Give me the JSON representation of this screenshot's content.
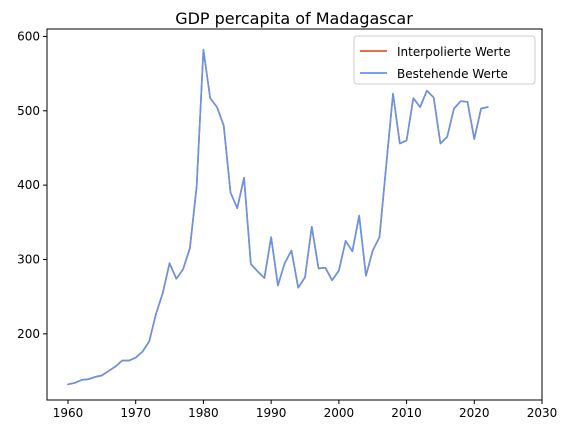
{
  "chart_data": {
    "type": "line",
    "title": "GDP percapita of Madagascar",
    "xlabel": "",
    "ylabel": "",
    "xlim": [
      1956.9,
      2030
    ],
    "ylim": [
      111,
      610
    ],
    "xticks": [
      1960,
      1970,
      1980,
      1990,
      2000,
      2010,
      2020,
      2030
    ],
    "yticks": [
      200,
      300,
      400,
      500,
      600
    ],
    "xtick_labels": [
      "1960",
      "1970",
      "1980",
      "1990",
      "2000",
      "2010",
      "2020",
      "2030"
    ],
    "ytick_labels": [
      "200",
      "300",
      "400",
      "500",
      "600"
    ],
    "grid": false,
    "legend_position": "top-right",
    "x": [
      1960,
      1961,
      1962,
      1963,
      1964,
      1965,
      1966,
      1967,
      1968,
      1969,
      1970,
      1971,
      1972,
      1973,
      1974,
      1975,
      1976,
      1977,
      1978,
      1979,
      1980,
      1981,
      1982,
      1983,
      1984,
      1985,
      1986,
      1987,
      1988,
      1989,
      1990,
      1991,
      1992,
      1993,
      1994,
      1995,
      1996,
      1997,
      1998,
      1999,
      2000,
      2001,
      2002,
      2003,
      2004,
      2005,
      2006,
      2007,
      2008,
      2009,
      2010,
      2011,
      2012,
      2013,
      2014,
      2015,
      2016,
      2017,
      2018,
      2019,
      2020,
      2021,
      2022
    ],
    "series": [
      {
        "name": "Interpolierte Werte",
        "color": "#e8592a",
        "values": [
          132,
          134,
          138,
          139,
          142,
          144,
          150,
          156,
          164,
          164,
          168,
          176,
          190,
          227,
          255,
          295,
          274,
          287,
          315,
          398,
          582,
          517,
          505,
          480,
          390,
          369,
          410,
          294,
          284,
          275,
          330,
          265,
          295,
          312,
          262,
          276,
          344,
          288,
          289,
          272,
          285,
          325,
          311,
          359,
          278,
          312,
          330,
          427,
          523,
          456,
          460,
          517,
          505,
          527,
          518,
          456,
          465,
          503,
          513,
          512,
          462,
          503,
          505
        ]
      },
      {
        "name": "Bestehende Werte",
        "color": "#6495ed",
        "values": [
          132,
          134,
          138,
          139,
          142,
          144,
          150,
          156,
          164,
          164,
          168,
          176,
          190,
          227,
          255,
          295,
          274,
          287,
          315,
          398,
          582,
          517,
          505,
          480,
          390,
          369,
          410,
          294,
          284,
          275,
          330,
          265,
          295,
          312,
          262,
          276,
          344,
          288,
          289,
          272,
          285,
          325,
          311,
          359,
          278,
          312,
          330,
          427,
          523,
          456,
          460,
          517,
          505,
          527,
          518,
          456,
          465,
          503,
          513,
          512,
          462,
          503,
          505
        ]
      }
    ]
  }
}
